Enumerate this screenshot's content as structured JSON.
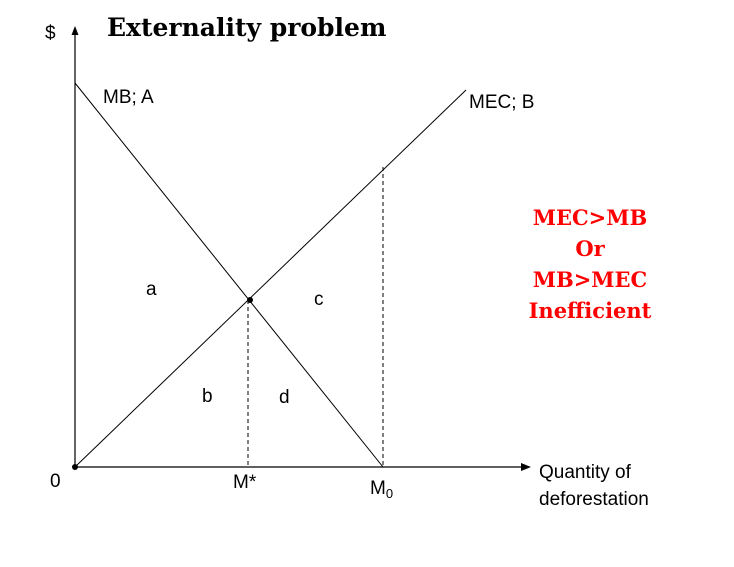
{
  "title": "Externality problem",
  "axes": {
    "y_label": "$",
    "origin_label": "0",
    "x_label_line1": "Quantity of",
    "x_label_line2": "deforestation",
    "m_star_label": "M*",
    "m0_label_main": "M",
    "m0_label_sub": "0"
  },
  "curves": {
    "mb_label": "MB; A",
    "mec_label": "MEC; B"
  },
  "areas": {
    "a": "a",
    "b": "b",
    "c": "c",
    "d": "d"
  },
  "note": {
    "lines": [
      "MEC>MB",
      "Or",
      "MB>MEC",
      "Inefficient"
    ],
    "color": "#ff0000"
  }
}
